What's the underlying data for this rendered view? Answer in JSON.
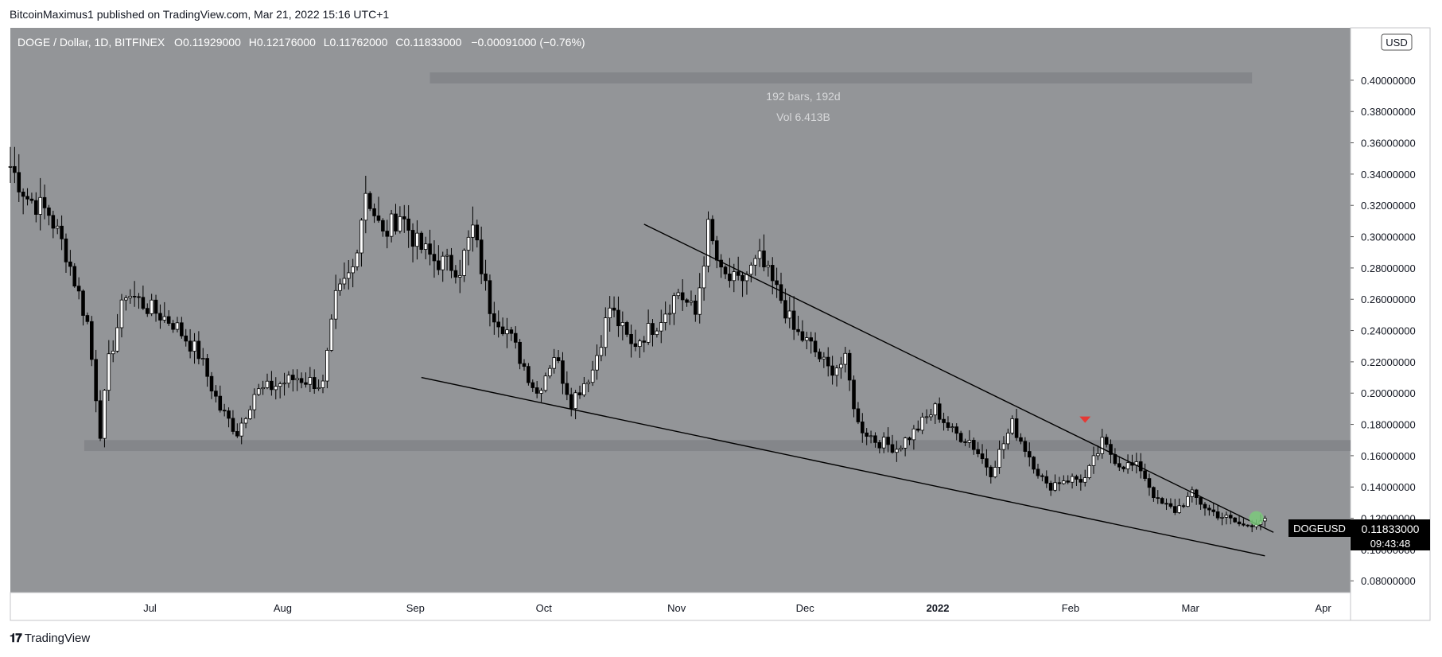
{
  "header": {
    "published": "BitcoinMaximus1 published on TradingView.com, Mar 21, 2022 15:16 UTC+1"
  },
  "footer": {
    "brand": "TradingView"
  },
  "colors": {
    "chart_bg": "#939598",
    "axis_bg": "#ffffff",
    "candle_up": "#ffffff",
    "candle_down": "#000000",
    "wick": "#000000",
    "trendline": "#000000",
    "zone": "#7f8185",
    "red_marker": "#e53935",
    "green_marker": "#7bc97b"
  },
  "legend": {
    "symbol": "DOGE / Dollar, 1D, BITFINEX",
    "o_label": "O",
    "o": "0.11929000",
    "h_label": "H",
    "h": "0.12176000",
    "l_label": "L",
    "l": "0.11762000",
    "c_label": "C",
    "c": "0.11833000",
    "change": "−0.00091000 (−0.76%)"
  },
  "measure": {
    "bars": "192 bars, 192d",
    "vol": "Vol 6.413B"
  },
  "price_tag": {
    "symbol": "DOGEUSD",
    "price": "0.11833000",
    "countdown": "09:43:48"
  },
  "currency": "USD",
  "chart_data": {
    "type": "candlestick",
    "title": "DOGE / Dollar, 1D, BITFINEX",
    "x_tick_labels": [
      "Jul",
      "Aug",
      "Sep",
      "Oct",
      "Nov",
      "Dec",
      "2022",
      "Feb",
      "Mar",
      "Apr"
    ],
    "y_tick_labels": [
      "0.08000000",
      "0.10000000",
      "0.12000000",
      "0.14000000",
      "0.16000000",
      "0.18000000",
      "0.20000000",
      "0.22000000",
      "0.24000000",
      "0.26000000",
      "0.28000000",
      "0.30000000",
      "0.32000000",
      "0.34000000",
      "0.36000000",
      "0.38000000",
      "0.40000000"
    ],
    "y_ticks": [
      0.08,
      0.1,
      0.12,
      0.14,
      0.16,
      0.18,
      0.2,
      0.22,
      0.24,
      0.26,
      0.28,
      0.3,
      0.32,
      0.34,
      0.36,
      0.38,
      0.4
    ],
    "ylim": [
      0.0725,
      0.4335
    ],
    "xlim": [
      "2021-06-01",
      "2022-04-10"
    ],
    "support_zone": [
      0.163,
      0.17
    ],
    "resistance_zone": {
      "start": "2021-09-07",
      "end": "2022-03-18",
      "range": [
        0.398,
        0.405
      ]
    },
    "wedge_upper": [
      [
        "2021-10-27",
        0.308
      ],
      [
        "2022-03-23",
        0.111
      ]
    ],
    "wedge_lower": [
      [
        "2021-09-05",
        0.21
      ],
      [
        "2022-03-21",
        0.096
      ]
    ],
    "red_marker": [
      "2022-02-07",
      0.181
    ],
    "green_marker": [
      "2022-03-19",
      0.12
    ],
    "anchors": [
      [
        "2021-06-01",
        0.345
      ],
      [
        "2021-06-05",
        0.325
      ],
      [
        "2021-06-10",
        0.315
      ],
      [
        "2021-06-14",
        0.29
      ],
      [
        "2021-06-19",
        0.245
      ],
      [
        "2021-06-22",
        0.175
      ],
      [
        "2021-06-24",
        0.22
      ],
      [
        "2021-06-28",
        0.265
      ],
      [
        "2021-07-03",
        0.255
      ],
      [
        "2021-07-09",
        0.245
      ],
      [
        "2021-07-15",
        0.225
      ],
      [
        "2021-07-20",
        0.19
      ],
      [
        "2021-07-24",
        0.175
      ],
      [
        "2021-07-28",
        0.2
      ],
      [
        "2021-08-02",
        0.205
      ],
      [
        "2021-08-07",
        0.21
      ],
      [
        "2021-08-13",
        0.205
      ],
      [
        "2021-08-16",
        0.26
      ],
      [
        "2021-08-20",
        0.28
      ],
      [
        "2021-08-23",
        0.33
      ],
      [
        "2021-08-27",
        0.3
      ],
      [
        "2021-08-31",
        0.315
      ],
      [
        "2021-09-04",
        0.295
      ],
      [
        "2021-09-08",
        0.285
      ],
      [
        "2021-09-14",
        0.28
      ],
      [
        "2021-09-17",
        0.305
      ],
      [
        "2021-09-21",
        0.255
      ],
      [
        "2021-09-25",
        0.24
      ],
      [
        "2021-10-02",
        0.2
      ],
      [
        "2021-10-06",
        0.225
      ],
      [
        "2021-10-10",
        0.195
      ],
      [
        "2021-10-15",
        0.215
      ],
      [
        "2021-10-19",
        0.255
      ],
      [
        "2021-10-24",
        0.23
      ],
      [
        "2021-10-30",
        0.245
      ],
      [
        "2021-11-04",
        0.265
      ],
      [
        "2021-11-08",
        0.25
      ],
      [
        "2021-11-11",
        0.305
      ],
      [
        "2021-11-14",
        0.275
      ],
      [
        "2021-11-18",
        0.27
      ],
      [
        "2021-11-23",
        0.285
      ],
      [
        "2021-11-28",
        0.26
      ],
      [
        "2021-12-01",
        0.24
      ],
      [
        "2021-12-05",
        0.23
      ],
      [
        "2021-12-09",
        0.215
      ],
      [
        "2021-12-13",
        0.22
      ],
      [
        "2021-12-16",
        0.18
      ],
      [
        "2021-12-20",
        0.17
      ],
      [
        "2021-12-25",
        0.165
      ],
      [
        "2021-12-29",
        0.175
      ],
      [
        "2022-01-03",
        0.19
      ],
      [
        "2022-01-07",
        0.175
      ],
      [
        "2022-01-11",
        0.17
      ],
      [
        "2022-01-16",
        0.15
      ],
      [
        "2022-01-21",
        0.18
      ],
      [
        "2022-01-25",
        0.16
      ],
      [
        "2022-01-29",
        0.14
      ],
      [
        "2022-02-02",
        0.145
      ],
      [
        "2022-02-07",
        0.145
      ],
      [
        "2022-02-11",
        0.168
      ],
      [
        "2022-02-15",
        0.155
      ],
      [
        "2022-02-20",
        0.152
      ],
      [
        "2022-02-24",
        0.13
      ],
      [
        "2022-02-28",
        0.125
      ],
      [
        "2022-03-04",
        0.135
      ],
      [
        "2022-03-08",
        0.125
      ],
      [
        "2022-03-12",
        0.12
      ],
      [
        "2022-03-16",
        0.115
      ],
      [
        "2022-03-21",
        0.12
      ]
    ]
  }
}
